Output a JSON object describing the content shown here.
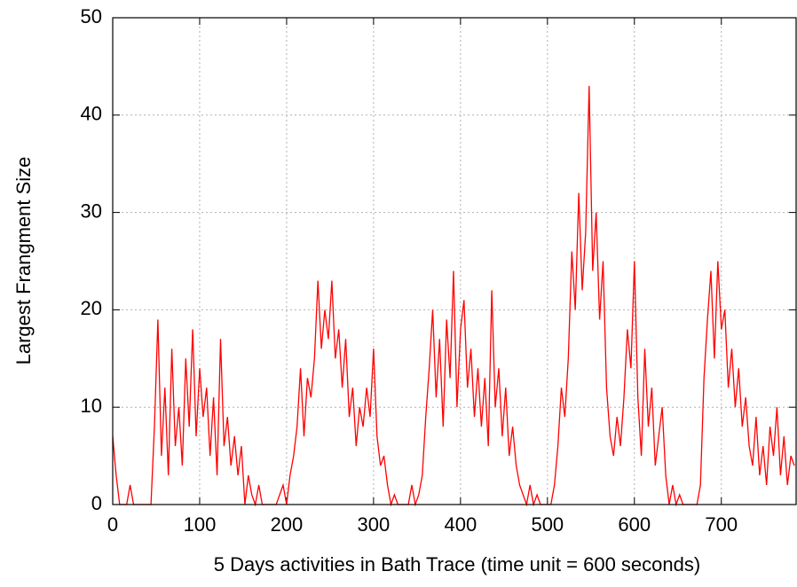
{
  "chart_data": {
    "type": "line",
    "xlabel": "5 Days activities in Bath Trace (time unit = 600 seconds)",
    "ylabel": "Largest Frangment Size",
    "color": "#ff0000",
    "grid": true,
    "xlim": [
      0,
      786
    ],
    "ylim": [
      0,
      50
    ],
    "xticks": [
      0,
      100,
      200,
      300,
      400,
      500,
      600,
      700
    ],
    "yticks": [
      0,
      10,
      20,
      30,
      40,
      50
    ],
    "x": [
      0,
      4,
      8,
      12,
      16,
      20,
      24,
      28,
      32,
      36,
      40,
      44,
      48,
      52,
      56,
      60,
      64,
      68,
      72,
      76,
      80,
      84,
      88,
      92,
      96,
      100,
      104,
      108,
      112,
      116,
      120,
      124,
      128,
      132,
      136,
      140,
      144,
      148,
      152,
      156,
      160,
      164,
      168,
      172,
      176,
      180,
      184,
      188,
      192,
      196,
      200,
      204,
      208,
      212,
      216,
      220,
      224,
      228,
      232,
      236,
      240,
      244,
      248,
      252,
      256,
      260,
      264,
      268,
      272,
      276,
      280,
      284,
      288,
      292,
      296,
      300,
      304,
      308,
      312,
      316,
      320,
      324,
      328,
      332,
      336,
      340,
      344,
      348,
      352,
      356,
      360,
      364,
      368,
      372,
      376,
      380,
      384,
      388,
      392,
      396,
      400,
      404,
      408,
      412,
      416,
      420,
      424,
      428,
      432,
      436,
      440,
      444,
      448,
      452,
      456,
      460,
      464,
      468,
      472,
      476,
      480,
      484,
      488,
      492,
      496,
      500,
      504,
      508,
      512,
      516,
      520,
      524,
      528,
      532,
      536,
      540,
      544,
      548,
      552,
      556,
      560,
      564,
      568,
      572,
      576,
      580,
      584,
      588,
      592,
      596,
      600,
      604,
      608,
      612,
      616,
      620,
      624,
      628,
      632,
      636,
      640,
      644,
      648,
      652,
      656,
      660,
      664,
      668,
      672,
      676,
      680,
      684,
      688,
      692,
      696,
      700,
      704,
      708,
      712,
      716,
      720,
      724,
      728,
      732,
      736,
      740,
      744,
      748,
      752,
      756,
      760,
      764,
      768,
      772,
      776,
      780,
      784
    ],
    "values": [
      7,
      3,
      0,
      0,
      0,
      2,
      0,
      0,
      0,
      0,
      0,
      0,
      8,
      19,
      5,
      12,
      3,
      16,
      6,
      10,
      4,
      15,
      8,
      18,
      7,
      14,
      9,
      12,
      5,
      11,
      3,
      17,
      6,
      9,
      4,
      7,
      3,
      6,
      0,
      3,
      1,
      0,
      2,
      0,
      0,
      0,
      0,
      0,
      1,
      2,
      0,
      3,
      5,
      8,
      14,
      7,
      13,
      11,
      15,
      23,
      16,
      20,
      17,
      23,
      15,
      18,
      12,
      17,
      9,
      12,
      6,
      10,
      8,
      12,
      9,
      16,
      7,
      4,
      5,
      2,
      0,
      1,
      0,
      0,
      0,
      0,
      2,
      0,
      1,
      3,
      9,
      14,
      20,
      11,
      17,
      8,
      19,
      13,
      24,
      10,
      18,
      21,
      12,
      16,
      9,
      14,
      8,
      13,
      6,
      22,
      10,
      14,
      7,
      12,
      5,
      8,
      4,
      2,
      1,
      0,
      2,
      0,
      1,
      0,
      0,
      0,
      0,
      2,
      6,
      12,
      9,
      15,
      26,
      20,
      32,
      22,
      28,
      43,
      24,
      30,
      19,
      25,
      12,
      7,
      5,
      9,
      6,
      11,
      18,
      14,
      25,
      11,
      5,
      16,
      8,
      12,
      4,
      7,
      10,
      3,
      0,
      2,
      0,
      1,
      0,
      0,
      0,
      0,
      0,
      2,
      13,
      19,
      24,
      15,
      25,
      18,
      20,
      12,
      16,
      10,
      14,
      8,
      11,
      6,
      4,
      9,
      3,
      6,
      2,
      8,
      5,
      10,
      3,
      7,
      2,
      5,
      4
    ]
  }
}
